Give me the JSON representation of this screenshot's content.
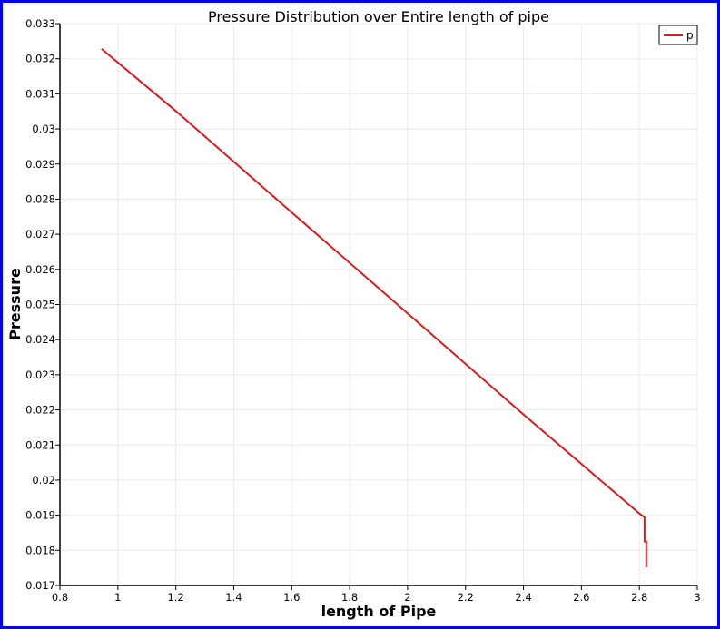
{
  "chart_data": {
    "type": "line",
    "title": "Pressure Distribution over Entire length of pipe",
    "xlabel": "length of Pipe",
    "ylabel": "Pressure",
    "xlim": [
      0.8,
      3
    ],
    "ylim": [
      0.017,
      0.033
    ],
    "x_ticks": [
      "0.8",
      "1",
      "1.2",
      "1.4",
      "1.6",
      "1.8",
      "2",
      "2.2",
      "2.4",
      "2.6",
      "2.8",
      "3"
    ],
    "y_ticks": [
      "0.017",
      "0.018",
      "0.019",
      "0.02",
      "0.021",
      "0.022",
      "0.023",
      "0.024",
      "0.025",
      "0.026",
      "0.027",
      "0.028",
      "0.029",
      "0.03",
      "0.031",
      "0.032",
      "0.033"
    ],
    "grid": true,
    "legend": {
      "position": "top-right",
      "entries": [
        "p"
      ]
    },
    "series": [
      {
        "name": "p",
        "color": "#dd1a1a",
        "x": [
          0.944,
          1.2,
          1.6,
          2.0,
          2.4,
          2.8,
          2.818,
          2.818,
          2.824,
          2.824
        ],
        "y": [
          0.03228,
          0.03051,
          0.02762,
          0.02475,
          0.02187,
          0.01905,
          0.01894,
          0.01825,
          0.01825,
          0.01752
        ]
      }
    ]
  },
  "colors": {
    "frame": "#0000ee",
    "series": "#dd1a1a",
    "grid": "#ebebeb"
  }
}
